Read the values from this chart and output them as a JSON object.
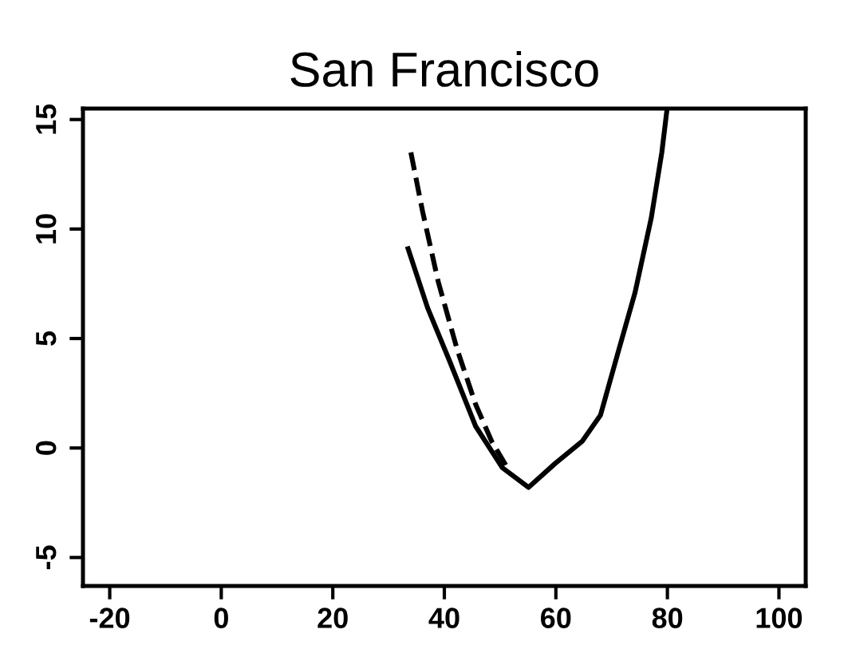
{
  "chart_data": {
    "type": "line",
    "title": "San Francisco",
    "series": [
      {
        "color": "#000000",
        "line_style": "solid",
        "x": [
          33.5,
          37.0,
          40.9,
          45.6,
          50.4,
          55.1,
          59.9,
          64.7,
          68.0,
          71.3,
          74.2,
          77.1,
          79.0,
          79.9
        ],
        "values": [
          9.1,
          6.4,
          4.0,
          1.0,
          -0.9,
          -1.8,
          -0.7,
          0.3,
          1.5,
          4.5,
          7.1,
          10.5,
          13.5,
          15.4
        ]
      },
      {
        "color": "#000000",
        "line_style": "dashed",
        "x": [
          34.0,
          36.1,
          38.9,
          42.3,
          45.6,
          48.5,
          51.3
        ],
        "values": [
          13.5,
          10.8,
          7.6,
          4.5,
          2.0,
          0.3,
          -0.9
        ]
      }
    ],
    "xlim": [
      -24.8,
      104.8
    ],
    "xticks": [
      -20,
      0,
      20,
      40,
      60,
      80,
      100
    ],
    "ylim": [
      -6.3,
      15.5
    ],
    "yticks": [
      -5,
      {
        "value": 0,
        "label": "0"
      },
      5,
      10,
      15
    ],
    "grid": false,
    "marker": "none"
  }
}
